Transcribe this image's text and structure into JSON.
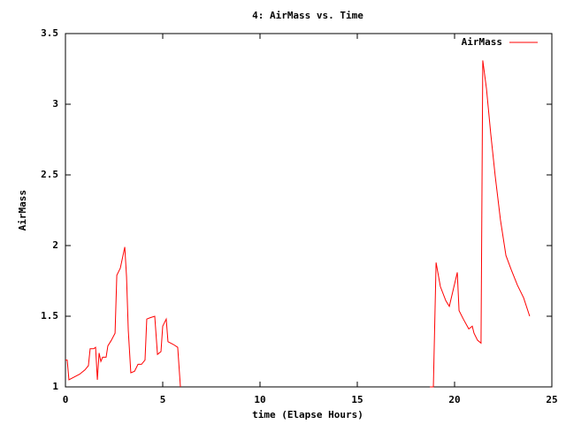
{
  "chart_data": {
    "type": "line",
    "title": "4: AirMass vs. Time",
    "x_label": "time (Elapse Hours)",
    "y_label": "AirMass",
    "x": [
      0,
      0.09,
      0.18,
      0.45,
      0.73,
      1.0,
      1.18,
      1.27,
      1.45,
      1.55,
      1.64,
      1.73,
      1.82,
      1.91,
      2.09,
      2.18,
      2.36,
      2.55,
      2.64,
      2.82,
      3.05,
      3.14,
      3.23,
      3.36,
      3.55,
      3.73,
      3.91,
      4.09,
      4.18,
      4.36,
      4.59,
      4.73,
      4.91,
      5.0,
      5.18,
      5.27,
      5.55,
      5.77,
      5.91,
      12,
      18.73,
      18.91,
      19.05,
      19.27,
      19.55,
      19.73,
      20.14,
      20.23,
      20.45,
      20.73,
      20.91,
      21.0,
      21.18,
      21.36,
      21.45,
      21.64,
      21.86,
      22.09,
      22.36,
      22.64,
      22.91,
      23.23,
      23.55,
      23.86
    ],
    "series": [
      {
        "name": "AirMass",
        "color": "#ff0000",
        "values": [
          1.19,
          1.19,
          1.05,
          1.07,
          1.09,
          1.12,
          1.15,
          1.27,
          1.27,
          1.28,
          1.05,
          1.24,
          1.18,
          1.21,
          1.21,
          1.29,
          1.33,
          1.38,
          1.79,
          1.84,
          1.99,
          1.78,
          1.4,
          1.1,
          1.11,
          1.16,
          1.16,
          1.19,
          1.48,
          1.49,
          1.5,
          1.23,
          1.25,
          1.43,
          1.48,
          1.32,
          1.3,
          1.28,
          1.0,
          null,
          1.0,
          1.0,
          1.88,
          1.71,
          1.61,
          1.57,
          1.81,
          1.54,
          1.48,
          1.41,
          1.43,
          1.38,
          1.33,
          1.31,
          3.31,
          3.11,
          2.79,
          2.49,
          2.18,
          1.93,
          1.83,
          1.72,
          1.63,
          1.5
        ]
      }
    ],
    "xlim": [
      0,
      25
    ],
    "xticks": [
      0,
      5,
      10,
      15,
      20,
      25
    ],
    "ylim": [
      1,
      3.5
    ],
    "yticks": [
      1,
      1.5,
      2,
      2.5,
      3,
      3.5
    ],
    "legend": "top-right"
  }
}
